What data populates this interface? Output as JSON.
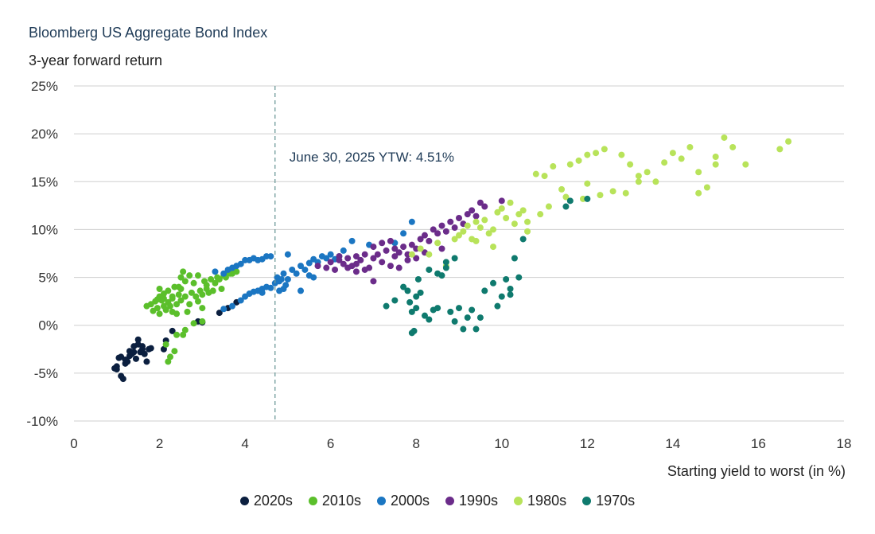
{
  "chart_data": {
    "type": "scatter",
    "title": "Bloomberg US Aggregate Bond Index",
    "ylabel": "3-year forward return",
    "xlabel": "Starting yield to worst (in %)",
    "xlim": [
      0,
      18
    ],
    "ylim": [
      -10,
      25
    ],
    "xticks": [
      0,
      2,
      4,
      6,
      8,
      10,
      12,
      14,
      16,
      18
    ],
    "yticks": [
      -10,
      -5,
      0,
      5,
      10,
      15,
      20,
      25
    ],
    "ytick_labels": [
      "-10%",
      "-5%",
      "0%",
      "5%",
      "10%",
      "15%",
      "20%",
      "25%"
    ],
    "grid": "horizontal",
    "legend_position": "bottom",
    "annotation": {
      "text": "June 30, 2025 YTW: 4.51%",
      "x": 4.7
    },
    "series": [
      {
        "name": "2020s",
        "color": "#0b1f3f",
        "points": [
          [
            0.95,
            -4.5
          ],
          [
            1.0,
            -4.6
          ],
          [
            1.05,
            -3.4
          ],
          [
            1.1,
            -5.3
          ],
          [
            1.15,
            -5.6
          ],
          [
            1.2,
            -4.0
          ],
          [
            1.25,
            -3.8
          ],
          [
            1.3,
            -3.2
          ],
          [
            1.35,
            -3.0
          ],
          [
            1.4,
            -2.2
          ],
          [
            1.45,
            -3.5
          ],
          [
            1.5,
            -1.5
          ],
          [
            1.55,
            -2.8
          ],
          [
            1.6,
            -2.2
          ],
          [
            1.65,
            -3.0
          ],
          [
            1.7,
            -3.8
          ],
          [
            1.75,
            -2.5
          ],
          [
            1.8,
            -2.4
          ],
          [
            1.3,
            -2.7
          ],
          [
            1.2,
            -3.6
          ],
          [
            1.1,
            -3.3
          ],
          [
            1.6,
            -2.5
          ],
          [
            1.4,
            -2.8
          ],
          [
            2.1,
            -2.5
          ],
          [
            2.15,
            -1.6
          ],
          [
            2.3,
            -0.6
          ],
          [
            2.9,
            0.4
          ],
          [
            3.0,
            0.3
          ],
          [
            3.4,
            1.3
          ],
          [
            3.6,
            1.8
          ],
          [
            3.8,
            2.4
          ],
          [
            1.5,
            -2.0
          ],
          [
            1.0,
            -4.3
          ]
        ]
      },
      {
        "name": "2010s",
        "color": "#5bbf2b",
        "points": [
          [
            1.7,
            2.0
          ],
          [
            1.8,
            2.2
          ],
          [
            1.85,
            1.5
          ],
          [
            1.9,
            2.5
          ],
          [
            1.95,
            1.8
          ],
          [
            2.0,
            3.0
          ],
          [
            2.0,
            1.2
          ],
          [
            2.05,
            2.6
          ],
          [
            2.1,
            2.0
          ],
          [
            2.1,
            3.3
          ],
          [
            2.15,
            1.6
          ],
          [
            2.2,
            2.4
          ],
          [
            2.2,
            3.6
          ],
          [
            2.25,
            2.0
          ],
          [
            2.3,
            1.4
          ],
          [
            2.3,
            2.8
          ],
          [
            2.35,
            4.0
          ],
          [
            2.4,
            2.2
          ],
          [
            2.4,
            1.2
          ],
          [
            2.45,
            3.2
          ],
          [
            2.5,
            5.0
          ],
          [
            2.5,
            2.6
          ],
          [
            2.55,
            5.6
          ],
          [
            2.6,
            4.6
          ],
          [
            2.6,
            3.0
          ],
          [
            2.65,
            1.4
          ],
          [
            2.7,
            5.2
          ],
          [
            2.7,
            2.2
          ],
          [
            2.75,
            3.4
          ],
          [
            2.8,
            4.4
          ],
          [
            2.85,
            3.0
          ],
          [
            2.9,
            2.5
          ],
          [
            2.95,
            3.6
          ],
          [
            3.0,
            1.8
          ],
          [
            3.0,
            3.2
          ],
          [
            3.05,
            4.6
          ],
          [
            3.1,
            3.8
          ],
          [
            3.15,
            3.4
          ],
          [
            3.2,
            4.8
          ],
          [
            3.25,
            3.6
          ],
          [
            3.3,
            4.4
          ],
          [
            3.35,
            5.0
          ],
          [
            3.4,
            4.8
          ],
          [
            3.45,
            3.8
          ],
          [
            3.5,
            5.2
          ],
          [
            3.55,
            5.0
          ],
          [
            3.6,
            5.6
          ],
          [
            3.65,
            5.4
          ],
          [
            3.7,
            5.4
          ],
          [
            3.75,
            5.8
          ],
          [
            3.8,
            5.6
          ],
          [
            2.2,
            -3.8
          ],
          [
            2.25,
            -3.3
          ],
          [
            2.35,
            -2.7
          ],
          [
            2.15,
            -2.0
          ],
          [
            2.4,
            -1.0
          ],
          [
            2.55,
            -1.0
          ],
          [
            2.6,
            -0.5
          ],
          [
            3.0,
            0.4
          ],
          [
            2.8,
            0.2
          ],
          [
            2.1,
            2.8
          ],
          [
            1.95,
            2.7
          ],
          [
            2.0,
            3.8
          ],
          [
            2.45,
            4.0
          ],
          [
            2.9,
            5.2
          ],
          [
            3.1,
            4.2
          ],
          [
            2.3,
            3.0
          ],
          [
            2.5,
            3.8
          ]
        ]
      },
      {
        "name": "2000s",
        "color": "#1b76c2",
        "points": [
          [
            3.3,
            5.6
          ],
          [
            3.5,
            5.4
          ],
          [
            3.6,
            5.8
          ],
          [
            3.7,
            6.0
          ],
          [
            3.8,
            6.2
          ],
          [
            3.9,
            6.4
          ],
          [
            4.0,
            6.8
          ],
          [
            4.1,
            6.8
          ],
          [
            4.2,
            7.0
          ],
          [
            4.3,
            6.8
          ],
          [
            4.4,
            6.9
          ],
          [
            4.5,
            7.2
          ],
          [
            4.6,
            7.2
          ],
          [
            3.5,
            1.7
          ],
          [
            3.7,
            2.0
          ],
          [
            3.9,
            2.6
          ],
          [
            4.0,
            3.0
          ],
          [
            4.1,
            3.3
          ],
          [
            4.2,
            3.5
          ],
          [
            4.3,
            3.6
          ],
          [
            4.4,
            3.8
          ],
          [
            4.5,
            4.0
          ],
          [
            4.6,
            3.9
          ],
          [
            4.7,
            4.4
          ],
          [
            4.75,
            5.0
          ],
          [
            4.8,
            4.6
          ],
          [
            4.85,
            4.8
          ],
          [
            4.9,
            5.4
          ],
          [
            4.95,
            4.2
          ],
          [
            5.0,
            4.8
          ],
          [
            5.1,
            5.8
          ],
          [
            5.2,
            5.4
          ],
          [
            5.3,
            6.2
          ],
          [
            5.4,
            5.8
          ],
          [
            5.5,
            6.5
          ],
          [
            5.6,
            6.9
          ],
          [
            5.7,
            6.6
          ],
          [
            5.8,
            7.2
          ],
          [
            5.9,
            7.0
          ],
          [
            6.0,
            7.4
          ],
          [
            6.1,
            6.9
          ],
          [
            6.2,
            7.2
          ],
          [
            6.3,
            7.8
          ],
          [
            6.5,
            8.8
          ],
          [
            6.9,
            8.4
          ],
          [
            7.5,
            8.6
          ],
          [
            7.7,
            9.6
          ],
          [
            7.9,
            10.8
          ],
          [
            5.3,
            3.6
          ],
          [
            5.5,
            5.2
          ],
          [
            5.0,
            7.4
          ],
          [
            4.9,
            3.8
          ],
          [
            4.8,
            3.6
          ],
          [
            4.4,
            3.4
          ],
          [
            5.6,
            5.0
          ]
        ]
      },
      {
        "name": "1990s",
        "color": "#6b2c8a",
        "points": [
          [
            5.7,
            6.2
          ],
          [
            5.9,
            6.0
          ],
          [
            6.0,
            6.6
          ],
          [
            6.1,
            5.8
          ],
          [
            6.2,
            6.8
          ],
          [
            6.3,
            6.4
          ],
          [
            6.4,
            7.0
          ],
          [
            6.5,
            6.2
          ],
          [
            6.6,
            7.2
          ],
          [
            6.7,
            6.8
          ],
          [
            6.8,
            7.4
          ],
          [
            6.9,
            6.0
          ],
          [
            7.0,
            8.2
          ],
          [
            7.1,
            7.4
          ],
          [
            7.2,
            8.6
          ],
          [
            7.3,
            7.8
          ],
          [
            7.4,
            8.8
          ],
          [
            7.5,
            8.0
          ],
          [
            7.6,
            7.6
          ],
          [
            7.7,
            8.2
          ],
          [
            7.8,
            6.8
          ],
          [
            7.9,
            8.4
          ],
          [
            8.0,
            7.0
          ],
          [
            8.1,
            9.0
          ],
          [
            8.2,
            9.4
          ],
          [
            8.3,
            8.8
          ],
          [
            8.4,
            10.0
          ],
          [
            8.5,
            9.6
          ],
          [
            8.6,
            10.4
          ],
          [
            8.7,
            9.8
          ],
          [
            8.8,
            10.8
          ],
          [
            8.9,
            10.2
          ],
          [
            9.0,
            11.2
          ],
          [
            9.1,
            10.6
          ],
          [
            9.2,
            11.6
          ],
          [
            9.3,
            12.0
          ],
          [
            9.4,
            11.4
          ],
          [
            9.5,
            12.8
          ],
          [
            9.6,
            12.4
          ],
          [
            10.0,
            13.0
          ],
          [
            6.6,
            5.6
          ],
          [
            7.0,
            4.6
          ],
          [
            6.8,
            5.8
          ],
          [
            7.4,
            6.2
          ],
          [
            7.6,
            6.0
          ],
          [
            7.2,
            6.6
          ],
          [
            6.4,
            6.0
          ],
          [
            7.8,
            7.4
          ],
          [
            6.2,
            7.2
          ],
          [
            6.6,
            6.4
          ],
          [
            7.0,
            7.0
          ],
          [
            7.5,
            7.2
          ],
          [
            8.0,
            8.0
          ],
          [
            8.2,
            7.6
          ],
          [
            8.6,
            8.0
          ]
        ]
      },
      {
        "name": "1980s",
        "color": "#b8e35a",
        "points": [
          [
            7.9,
            7.4
          ],
          [
            8.1,
            8.0
          ],
          [
            8.3,
            7.4
          ],
          [
            8.5,
            8.6
          ],
          [
            8.7,
            6.2
          ],
          [
            8.9,
            9.0
          ],
          [
            9.0,
            9.4
          ],
          [
            9.1,
            9.8
          ],
          [
            9.2,
            10.4
          ],
          [
            9.3,
            9.0
          ],
          [
            9.4,
            10.8
          ],
          [
            9.5,
            10.2
          ],
          [
            9.6,
            11.0
          ],
          [
            9.7,
            9.6
          ],
          [
            9.8,
            10.0
          ],
          [
            9.9,
            11.8
          ],
          [
            10.0,
            12.2
          ],
          [
            10.1,
            11.2
          ],
          [
            10.2,
            12.8
          ],
          [
            10.3,
            10.6
          ],
          [
            10.4,
            11.6
          ],
          [
            10.5,
            12.0
          ],
          [
            10.6,
            10.8
          ],
          [
            10.8,
            15.8
          ],
          [
            11.0,
            15.6
          ],
          [
            11.2,
            16.6
          ],
          [
            11.4,
            14.2
          ],
          [
            11.6,
            16.8
          ],
          [
            11.8,
            17.2
          ],
          [
            12.0,
            17.8
          ],
          [
            12.2,
            18.0
          ],
          [
            12.4,
            18.4
          ],
          [
            12.6,
            14.0
          ],
          [
            12.8,
            17.8
          ],
          [
            13.0,
            16.8
          ],
          [
            13.2,
            15.6
          ],
          [
            13.4,
            16.0
          ],
          [
            13.6,
            15.0
          ],
          [
            13.8,
            17.0
          ],
          [
            14.0,
            18.0
          ],
          [
            14.2,
            17.4
          ],
          [
            14.4,
            18.6
          ],
          [
            14.6,
            16.0
          ],
          [
            14.8,
            14.4
          ],
          [
            15.0,
            17.6
          ],
          [
            15.2,
            19.6
          ],
          [
            15.4,
            18.6
          ],
          [
            15.7,
            16.8
          ],
          [
            16.5,
            18.4
          ],
          [
            16.7,
            19.2
          ],
          [
            11.5,
            13.4
          ],
          [
            11.9,
            13.2
          ],
          [
            12.3,
            13.6
          ],
          [
            12.9,
            13.8
          ],
          [
            11.1,
            12.4
          ],
          [
            10.9,
            11.6
          ],
          [
            9.8,
            8.2
          ],
          [
            9.4,
            8.8
          ],
          [
            10.6,
            9.8
          ],
          [
            14.6,
            13.8
          ],
          [
            15.0,
            16.8
          ],
          [
            13.2,
            15.0
          ],
          [
            12.0,
            14.8
          ]
        ]
      },
      {
        "name": "1970s",
        "color": "#0f7a6e",
        "points": [
          [
            7.3,
            2.0
          ],
          [
            7.5,
            2.6
          ],
          [
            7.7,
            4.0
          ],
          [
            7.8,
            3.6
          ],
          [
            7.85,
            2.4
          ],
          [
            7.9,
            1.4
          ],
          [
            7.95,
            -0.6
          ],
          [
            8.0,
            1.8
          ],
          [
            8.05,
            4.8
          ],
          [
            8.1,
            3.4
          ],
          [
            8.2,
            1.0
          ],
          [
            8.3,
            0.6
          ],
          [
            8.4,
            1.6
          ],
          [
            8.5,
            1.8
          ],
          [
            8.6,
            5.2
          ],
          [
            8.7,
            6.0
          ],
          [
            8.8,
            1.4
          ],
          [
            8.9,
            0.4
          ],
          [
            9.0,
            1.8
          ],
          [
            9.1,
            -0.4
          ],
          [
            9.2,
            0.8
          ],
          [
            9.3,
            1.6
          ],
          [
            9.4,
            -0.4
          ],
          [
            9.6,
            3.6
          ],
          [
            9.8,
            4.4
          ],
          [
            9.9,
            2.0
          ],
          [
            10.0,
            3.0
          ],
          [
            10.1,
            4.8
          ],
          [
            10.2,
            3.8
          ],
          [
            10.3,
            7.0
          ],
          [
            10.4,
            5.0
          ],
          [
            10.5,
            9.0
          ],
          [
            11.5,
            12.4
          ],
          [
            11.6,
            13.0
          ],
          [
            12.0,
            13.2
          ],
          [
            7.9,
            -0.8
          ],
          [
            8.5,
            5.4
          ],
          [
            8.9,
            7.0
          ],
          [
            10.2,
            3.2
          ],
          [
            9.5,
            0.8
          ],
          [
            8.0,
            3.0
          ],
          [
            8.3,
            5.8
          ],
          [
            8.7,
            6.6
          ]
        ]
      }
    ]
  }
}
